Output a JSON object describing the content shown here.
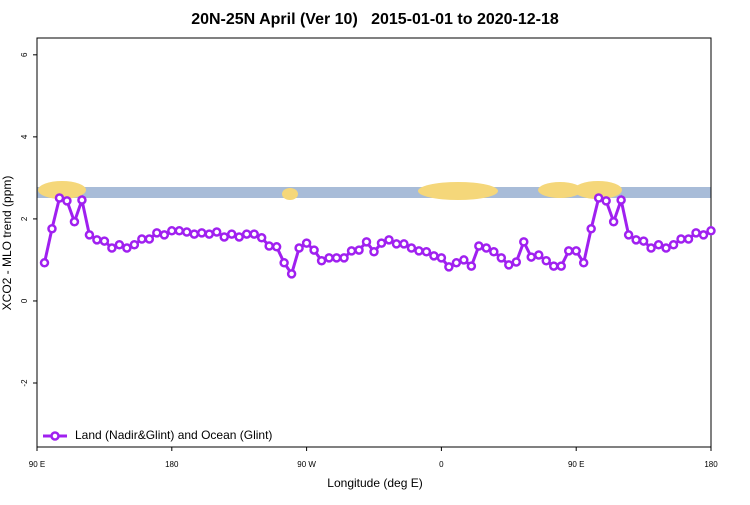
{
  "chart_data": {
    "type": "line",
    "title": "20N-25N April (Ver 10)   2015-01-01 to 2020-12-18",
    "x_label": "Longitude (deg E)",
    "y_label": "XCO2 - MLO trend (ppm)",
    "xlim": [
      90,
      540
    ],
    "ylim": [
      -3.56,
      6.41
    ],
    "xticks": [
      {
        "value": 90,
        "label": "90 E"
      },
      180,
      {
        "value": 270,
        "label": "90 W"
      },
      {
        "value": 360,
        "label": "0"
      },
      {
        "value": 450,
        "label": "90 E"
      },
      {
        "value": 540,
        "label": "180"
      }
    ],
    "yticks": [
      -2,
      0,
      2,
      4,
      6
    ],
    "legend_position": "bottom-left",
    "x": [
      95,
      100,
      105,
      110,
      115,
      120,
      125,
      130,
      135,
      140,
      145,
      150,
      155,
      160,
      165,
      170,
      175,
      180,
      185,
      190,
      195,
      200,
      205,
      210,
      215,
      220,
      225,
      230,
      235,
      240,
      245,
      250,
      255,
      260,
      265,
      270,
      275,
      280,
      285,
      290,
      295,
      300,
      305,
      310,
      315,
      320,
      325,
      330,
      335,
      340,
      345,
      350,
      355,
      360,
      365,
      370,
      375,
      380,
      385,
      390,
      395,
      400,
      405,
      410,
      415,
      420,
      425,
      430,
      435,
      440,
      445,
      450,
      455,
      460,
      465,
      470,
      475,
      480,
      485,
      490,
      495,
      500,
      505,
      510,
      515,
      520,
      525,
      530,
      535,
      540
    ],
    "series": [
      {
        "name": "Land (Nadir&Glint) and Ocean (Glint)",
        "color": "#a020f0",
        "values": [
          0.93,
          1.76,
          2.51,
          2.44,
          1.93,
          2.46,
          1.61,
          1.49,
          1.46,
          1.29,
          1.37,
          1.29,
          1.37,
          1.51,
          1.51,
          1.66,
          1.61,
          1.71,
          1.71,
          1.68,
          1.63,
          1.66,
          1.63,
          1.68,
          1.56,
          1.63,
          1.56,
          1.63,
          1.63,
          1.54,
          1.34,
          1.32,
          0.93,
          0.66,
          1.29,
          1.41,
          1.24,
          0.98,
          1.05,
          1.05,
          1.05,
          1.22,
          1.24,
          1.44,
          1.2,
          1.41,
          1.49,
          1.39,
          1.39,
          1.29,
          1.22,
          1.2,
          1.1,
          1.05,
          0.83,
          0.93,
          1.0,
          0.85,
          1.34,
          1.29,
          1.2,
          1.05,
          0.88,
          0.95,
          1.44,
          1.07,
          1.12,
          0.98,
          0.85,
          0.85,
          1.22,
          1.22,
          0.93,
          1.76,
          2.51,
          2.44,
          1.93,
          2.46,
          1.61,
          1.49,
          1.46,
          1.29,
          1.37,
          1.29,
          1.37,
          1.51,
          1.51,
          1.66,
          1.61,
          1.71
        ]
      }
    ]
  }
}
